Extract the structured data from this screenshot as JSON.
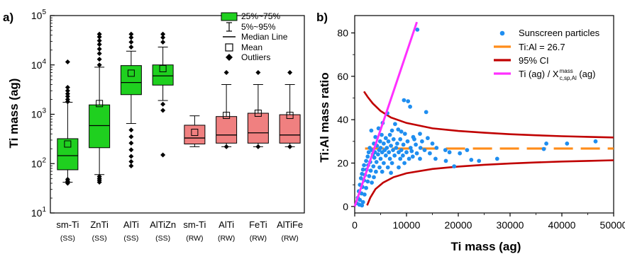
{
  "chart_data": [
    {
      "panel": "a)",
      "type": "box",
      "ylabel": "Ti mass (ag)",
      "yscale": "log",
      "ylim": [
        10,
        100000
      ],
      "yticks": [
        "10^1",
        "10^2",
        "10^3",
        "10^4",
        "10^5"
      ],
      "categories": [
        {
          "name": "sm-Ti",
          "sub": "(SS)",
          "color": "#1fd01f",
          "p5": 42,
          "p25": 75,
          "median": 145,
          "p75": 320,
          "p95": 1750,
          "mean": 250,
          "outliers_low": [
            40,
            44,
            48
          ],
          "outliers_high": [
            1800,
            2000,
            2300,
            2600,
            3000,
            3500,
            11500
          ]
        },
        {
          "name": "ZnTi",
          "sub": "(SS)",
          "color": "#1fd01f",
          "p5": 60,
          "p25": 210,
          "median": 590,
          "p75": 1550,
          "p95": 9000,
          "mean": 1650,
          "outliers_low": [
            42,
            46,
            50,
            55
          ],
          "outliers_high": [
            10000,
            13000,
            17000,
            21000,
            26000,
            31000,
            37000,
            42000
          ]
        },
        {
          "name": "AlTi",
          "sub": "(SS)",
          "color": "#1fd01f",
          "p5": 650,
          "p25": 2500,
          "median": 4400,
          "p75": 9700,
          "p95": 19000,
          "mean": 6800,
          "outliers_low": [
            90,
            110,
            140,
            190,
            260,
            350,
            480
          ],
          "outliers_high": [
            23000,
            29000,
            36000,
            42000
          ]
        },
        {
          "name": "AlTiZn",
          "sub": "(SS)",
          "color": "#1fd01f",
          "p5": 1900,
          "p25": 3900,
          "median": 6000,
          "p75": 10000,
          "p95": 23000,
          "mean": 8400,
          "outliers_low": [
            150,
            1200,
            1600
          ],
          "outliers_high": [
            29000,
            36000,
            42000
          ]
        },
        {
          "name": "sm-Ti",
          "sub": "(RW)",
          "color": "#f08080",
          "p5": 220,
          "p25": 250,
          "median": 330,
          "p75": 600,
          "p95": 930,
          "mean": 430,
          "outliers_low": [],
          "outliers_high": []
        },
        {
          "name": "AlTi",
          "sub": "(RW)",
          "color": "#f08080",
          "p5": 220,
          "p25": 260,
          "median": 380,
          "p75": 900,
          "p95": 4000,
          "mean": 950,
          "outliers_low": [
            220
          ],
          "outliers_high": [
            7000
          ]
        },
        {
          "name": "FeTi",
          "sub": "(RW)",
          "color": "#f08080",
          "p5": 220,
          "p25": 260,
          "median": 420,
          "p75": 1050,
          "p95": 4000,
          "mean": 1050,
          "outliers_low": [
            220
          ],
          "outliers_high": [
            7000
          ]
        },
        {
          "name": "AlTiFe",
          "sub": "(RW)",
          "color": "#f08080",
          "p5": 220,
          "p25": 260,
          "median": 380,
          "p75": 980,
          "p95": 4000,
          "mean": 950,
          "outliers_low": [
            220
          ],
          "outliers_high": [
            7000
          ]
        }
      ],
      "legend": {
        "box": "25%~75%",
        "whisker": "5%~95%",
        "median": "Median Line",
        "mean": "Mean",
        "outliers": "Outliers"
      }
    },
    {
      "panel": "b)",
      "type": "scatter",
      "xlabel": "Ti mass (ag)",
      "ylabel": "Ti:Al mass ratio",
      "xlim": [
        0,
        50000
      ],
      "ylim": [
        -3,
        88
      ],
      "xticks": [
        0,
        10000,
        20000,
        30000,
        40000,
        50000
      ],
      "yticks": [
        0,
        20,
        40,
        60,
        80
      ],
      "legend": [
        {
          "label": "Sunscreen particles",
          "color": "#1f8ef0",
          "kind": "point"
        },
        {
          "label": "Ti:Al = 26.7",
          "color": "#ff8c1a",
          "kind": "dash"
        },
        {
          "label": "95% CI",
          "color": "#c00000",
          "kind": "line"
        },
        {
          "label_main": "Ti (ag) / X",
          "label_sup": "mass",
          "label_sub": "c,sp,Al",
          "label_tail": " (ag)",
          "color": "#ff30ff",
          "kind": "line"
        }
      ],
      "ratio_line": {
        "y": 26.7,
        "x_from": 2000,
        "x_to": 50000,
        "color": "#ff8c1a"
      },
      "ci_upper": [
        [
          1800,
          53
        ],
        [
          2500,
          50.5
        ],
        [
          3500,
          47.5
        ],
        [
          5000,
          44
        ],
        [
          7000,
          41
        ],
        [
          10000,
          38.5
        ],
        [
          15000,
          36
        ],
        [
          20000,
          34.8
        ],
        [
          25000,
          34
        ],
        [
          30000,
          33.3
        ],
        [
          35000,
          32.8
        ],
        [
          40000,
          32.4
        ],
        [
          45000,
          32.1
        ],
        [
          50000,
          31.8
        ]
      ],
      "ci_lower": [
        [
          2400,
          0.5
        ],
        [
          3000,
          4
        ],
        [
          4000,
          8
        ],
        [
          5500,
          11
        ],
        [
          7500,
          13.5
        ],
        [
          10000,
          15.3
        ],
        [
          15000,
          17.3
        ],
        [
          20000,
          18.4
        ],
        [
          25000,
          19.2
        ],
        [
          30000,
          19.8
        ],
        [
          35000,
          20.3
        ],
        [
          40000,
          20.7
        ],
        [
          45000,
          21.0
        ],
        [
          50000,
          21.3
        ]
      ],
      "magenta_line": {
        "from": [
          0,
          0
        ],
        "to": [
          12000,
          85
        ],
        "color": "#ff30ff"
      },
      "points": [
        [
          12100,
          81.5
        ],
        [
          9500,
          49
        ],
        [
          10300,
          48.5
        ],
        [
          10700,
          46
        ],
        [
          13800,
          43.5
        ],
        [
          6300,
          43
        ],
        [
          5400,
          38.5
        ],
        [
          7800,
          38
        ],
        [
          4600,
          36
        ],
        [
          3200,
          35
        ],
        [
          7200,
          35
        ],
        [
          8400,
          35.5
        ],
        [
          9000,
          34.5
        ],
        [
          9700,
          33.5
        ],
        [
          5200,
          33
        ],
        [
          6800,
          33
        ],
        [
          12600,
          33.5
        ],
        [
          11300,
          32
        ],
        [
          4000,
          32
        ],
        [
          6000,
          31.5
        ],
        [
          7500,
          31
        ],
        [
          8800,
          31
        ],
        [
          11500,
          31
        ],
        [
          14100,
          31.5
        ],
        [
          4900,
          30
        ],
        [
          6500,
          30
        ],
        [
          10200,
          30
        ],
        [
          13000,
          30
        ],
        [
          3700,
          29
        ],
        [
          5600,
          29
        ],
        [
          8200,
          29
        ],
        [
          9400,
          28.5
        ],
        [
          11800,
          28.5
        ],
        [
          15000,
          29
        ],
        [
          4300,
          28
        ],
        [
          7000,
          28
        ],
        [
          2900,
          27
        ],
        [
          5000,
          27
        ],
        [
          6200,
          27
        ],
        [
          8000,
          27
        ],
        [
          10800,
          27
        ],
        [
          12700,
          27
        ],
        [
          15800,
          27
        ],
        [
          3300,
          26
        ],
        [
          4700,
          26
        ],
        [
          5800,
          26
        ],
        [
          7400,
          26
        ],
        [
          9000,
          26
        ],
        [
          11000,
          25.5
        ],
        [
          13500,
          26
        ],
        [
          2700,
          25
        ],
        [
          3900,
          25
        ],
        [
          5300,
          25
        ],
        [
          6600,
          25
        ],
        [
          8500,
          25
        ],
        [
          10000,
          25
        ],
        [
          12000,
          24.5
        ],
        [
          14500,
          24.5
        ],
        [
          3500,
          24
        ],
        [
          4500,
          24
        ],
        [
          6000,
          23.5
        ],
        [
          7700,
          23.5
        ],
        [
          9300,
          23.5
        ],
        [
          11200,
          23
        ],
        [
          2500,
          23
        ],
        [
          3800,
          22.5
        ],
        [
          5000,
          22
        ],
        [
          6800,
          22
        ],
        [
          8800,
          22
        ],
        [
          10500,
          22
        ],
        [
          12600,
          22
        ],
        [
          15600,
          22
        ],
        [
          17600,
          21
        ],
        [
          2200,
          21
        ],
        [
          3000,
          20.5
        ],
        [
          4200,
          20.5
        ],
        [
          5600,
          20
        ],
        [
          7200,
          20
        ],
        [
          9600,
          20
        ],
        [
          1800,
          19
        ],
        [
          2600,
          19
        ],
        [
          3600,
          18.5
        ],
        [
          4800,
          18
        ],
        [
          6400,
          18
        ],
        [
          8500,
          18
        ],
        [
          1600,
          17
        ],
        [
          2300,
          17
        ],
        [
          3100,
          16.5
        ],
        [
          4100,
          16
        ],
        [
          5300,
          16
        ],
        [
          7000,
          15.5
        ],
        [
          1400,
          15
        ],
        [
          2000,
          14.5
        ],
        [
          2800,
          14
        ],
        [
          3700,
          13.5
        ],
        [
          1200,
          13
        ],
        [
          1800,
          12
        ],
        [
          2500,
          11.5
        ],
        [
          3300,
          11
        ],
        [
          1000,
          10
        ],
        [
          1500,
          9
        ],
        [
          2200,
          8.5
        ],
        [
          800,
          7
        ],
        [
          1300,
          6
        ],
        [
          1900,
          5.5
        ],
        [
          600,
          4
        ],
        [
          1000,
          3
        ],
        [
          1600,
          2
        ],
        [
          400,
          1.5
        ],
        [
          900,
          0.8
        ],
        [
          1400,
          0.5
        ],
        [
          19200,
          18.5
        ],
        [
          18300,
          25
        ],
        [
          20300,
          24.5
        ],
        [
          22500,
          21.5
        ],
        [
          21700,
          26
        ],
        [
          17500,
          26
        ],
        [
          27500,
          22
        ],
        [
          36500,
          26.5
        ],
        [
          37000,
          29
        ],
        [
          41000,
          29
        ],
        [
          46500,
          30
        ],
        [
          24000,
          21
        ]
      ]
    }
  ]
}
